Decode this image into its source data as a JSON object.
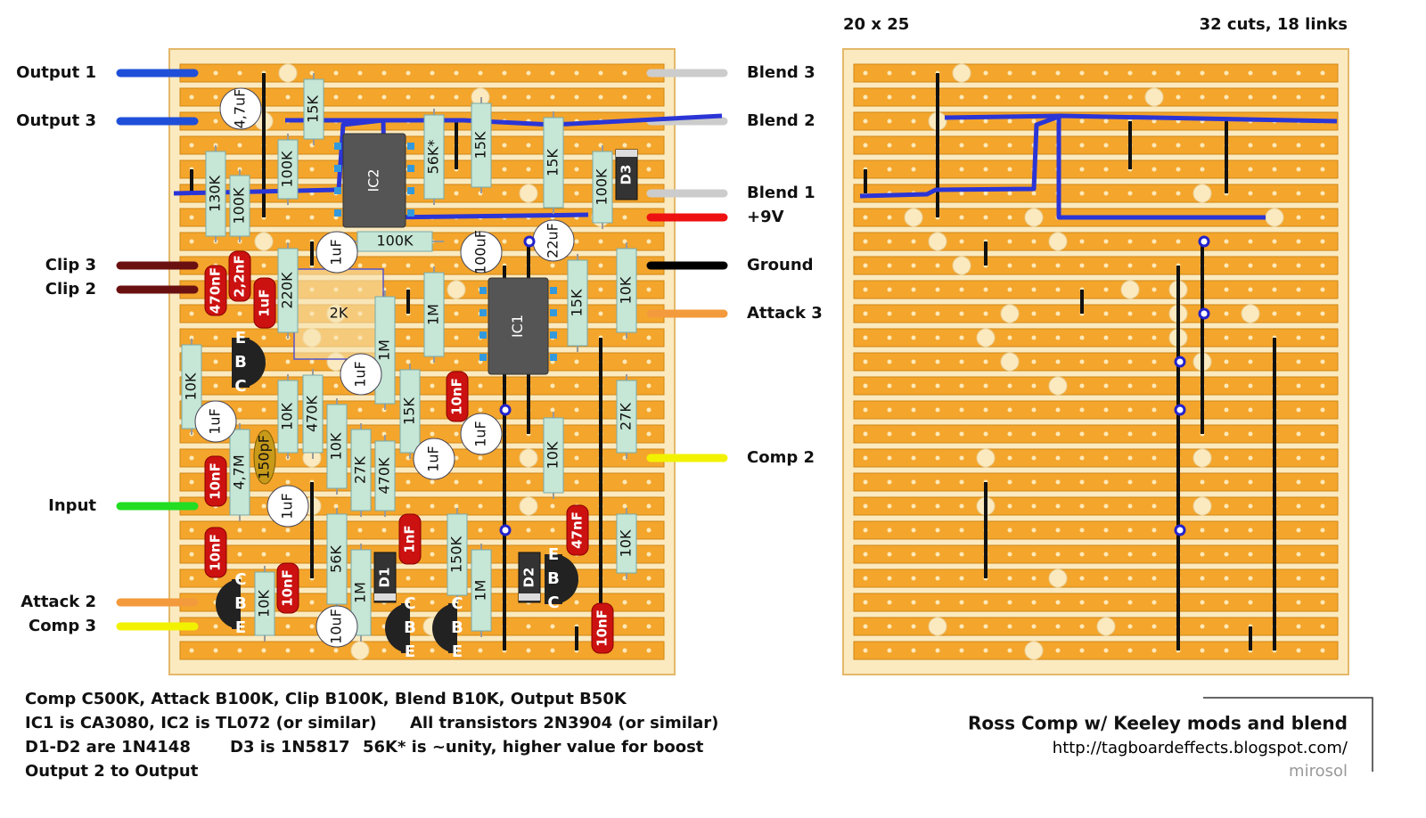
{
  "header": {
    "grid_size": "20 x 25",
    "cuts_links": "32 cuts, 18 links"
  },
  "left_wires": [
    {
      "label": "Output 1",
      "color": "#1f4fd8"
    },
    {
      "label": "Output 3",
      "color": "#1f4fd8"
    },
    {
      "label": "Clip 3",
      "color": "#6b1010"
    },
    {
      "label": "Clip 2",
      "color": "#6b1010"
    },
    {
      "label": "Input",
      "color": "#22dd22"
    },
    {
      "label": "Attack 2",
      "color": "#f39a3c"
    },
    {
      "label": "Comp 3",
      "color": "#f2f200"
    }
  ],
  "right_wires": [
    {
      "label": "Blend 3",
      "color": "#cccccc"
    },
    {
      "label": "Blend 2",
      "color": "#cccccc"
    },
    {
      "label": "Blend 1",
      "color": "#cccccc"
    },
    {
      "label": "+9V",
      "color": "#ee1111"
    },
    {
      "label": "Ground",
      "color": "#000000"
    },
    {
      "label": "Attack 3",
      "color": "#f39a3c"
    },
    {
      "label": "Comp 2",
      "color": "#f2f200"
    }
  ],
  "resistors": [
    "15K",
    "130K",
    "100K",
    "100K",
    "56K*",
    "15K",
    "15K",
    "100K",
    "100K",
    "220K",
    "1M",
    "15K",
    "10K",
    "1M",
    "10K",
    "10K",
    "470K",
    "15K",
    "10K",
    "27K",
    "470K",
    "4,7M",
    "27K",
    "10K",
    "56K",
    "150K",
    "1M",
    "1M",
    "10K",
    "10K"
  ],
  "film_caps": [
    "470nF",
    "2,2nF",
    "1uF",
    "10nF",
    "10nF",
    "10nF",
    "10nF",
    "1nF",
    "47nF",
    "10nF"
  ],
  "electrolytics": [
    "4,7uF",
    "1uF",
    "100uF",
    "22uF",
    "1uF",
    "1uF",
    "1uF",
    "1uF",
    "1uF",
    "10uF"
  ],
  "ceramic": [
    "150pF"
  ],
  "diodes": [
    "D3",
    "D1",
    "D2"
  ],
  "ics": [
    "IC2",
    "IC1"
  ],
  "trimmers": [
    "2K"
  ],
  "transistors": [
    {
      "pins": [
        "E",
        "B",
        "C"
      ]
    },
    {
      "pins": [
        "C",
        "B",
        "E"
      ]
    },
    {
      "pins": [
        "C",
        "B",
        "E"
      ]
    },
    {
      "pins": [
        "C",
        "B",
        "E"
      ]
    },
    {
      "pins": [
        "E",
        "B",
        "C"
      ]
    }
  ],
  "notes": [
    "Comp C500K, Attack B100K, Clip B100K, Blend B10K, Output B50K",
    "IC1 is CA3080, IC2 is TL072 (or similar)",
    "All transistors 2N3904 (or similar)",
    "D1-D2 are 1N4148",
    "D3 is 1N5817",
    "56K* is ~unity, higher value for boost",
    "Output 2 to Output"
  ],
  "footer": {
    "title": "Ross Comp w/ Keeley mods and blend",
    "url": "http://tagboardeffects.blogspot.com/",
    "author": "mirosol"
  }
}
